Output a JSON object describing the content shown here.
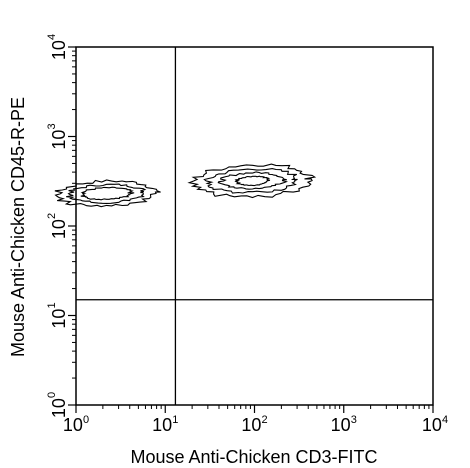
{
  "chart_data": {
    "type": "contour",
    "title": "",
    "xlabel": "Mouse Anti-Chicken CD3-FITC",
    "ylabel": "Mouse Anti-Chicken CD45-R-PE",
    "xscale": "log",
    "yscale": "log",
    "xlim": [
      1,
      10000
    ],
    "ylim": [
      1,
      10000
    ],
    "x_ticks": [
      {
        "base": "10",
        "exp": "0"
      },
      {
        "base": "10",
        "exp": "1"
      },
      {
        "base": "10",
        "exp": "2"
      },
      {
        "base": "10",
        "exp": "3"
      },
      {
        "base": "10",
        "exp": "4"
      }
    ],
    "y_ticks": [
      {
        "base": "10",
        "exp": "0"
      },
      {
        "base": "10",
        "exp": "1"
      },
      {
        "base": "10",
        "exp": "2"
      },
      {
        "base": "10",
        "exp": "3"
      },
      {
        "base": "10",
        "exp": "4"
      }
    ],
    "quadrant_gates": {
      "x": 13,
      "y": 15
    },
    "grid": false,
    "populations": [
      {
        "center": [
          2.2,
          230
        ],
        "levels": [
          {
            "rx_decades": 0.55,
            "ry_decades": 0.14
          },
          {
            "rx_decades": 0.42,
            "ry_decades": 0.1
          },
          {
            "rx_decades": 0.28,
            "ry_decades": 0.065
          }
        ]
      },
      {
        "center": [
          95,
          320
        ],
        "levels": [
          {
            "rx_decades": 0.65,
            "ry_decades": 0.18
          },
          {
            "rx_decades": 0.5,
            "ry_decades": 0.13
          },
          {
            "rx_decades": 0.35,
            "ry_decades": 0.09
          },
          {
            "rx_decades": 0.18,
            "ry_decades": 0.05
          }
        ]
      }
    ]
  }
}
